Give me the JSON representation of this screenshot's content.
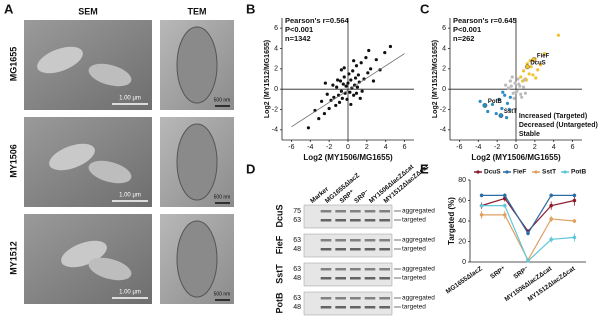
{
  "panels": {
    "A": {
      "label": "A",
      "columns": [
        "SEM",
        "TEM"
      ],
      "rows": [
        "MG1655",
        "MY1506",
        "MY1512"
      ],
      "sem_scale": "1.00 μm",
      "tem_scale": "500 nm"
    },
    "D": {
      "label": "D",
      "lanes": [
        "Marker",
        "MG1655ΔlacZ",
        "SRP⁺",
        "SRP⁻",
        "MY1506ΔlacZΔcat",
        "MY1512ΔlacZΔcat"
      ],
      "blots": [
        {
          "protein": "DcuS",
          "markers": [
            75,
            63
          ],
          "bands": [
            "aggregated",
            "targeted"
          ]
        },
        {
          "protein": "FieF",
          "markers": [
            63,
            48
          ],
          "bands": [
            "aggregated",
            "targeted"
          ]
        },
        {
          "protein": "SstT",
          "markers": [
            63,
            48
          ],
          "bands": [
            "aggregated",
            "targeted"
          ]
        },
        {
          "protein": "PotB",
          "markers": [
            63,
            48
          ],
          "bands": [
            "aggregated",
            "targeted"
          ]
        }
      ]
    }
  },
  "chart_data": [
    {
      "type": "scatter",
      "panel": "B",
      "xlabel": "Log2 (MY1506/MG1655)",
      "ylabel": "Log2 (MY1512/MG1655)",
      "annotations": [
        "Pearson's r=0.564",
        "P<0.001",
        "n=1342"
      ],
      "xlim": [
        -7,
        7
      ],
      "ylim": [
        -5,
        7
      ],
      "xticks": [
        -6,
        -4,
        -2,
        0,
        2,
        4,
        6
      ],
      "yticks": [
        -4,
        -2,
        0,
        2,
        4,
        6
      ],
      "fit_line": {
        "x": [
          -6,
          6
        ],
        "y": [
          -3.7,
          3.5
        ]
      },
      "series": [
        {
          "color": "#111111",
          "x": [
            -4.2,
            -3.5,
            -3.1,
            -2.8,
            -2.5,
            -2.2,
            -2,
            -1.8,
            -1.6,
            -1.5,
            -1.3,
            -1.2,
            -1,
            -0.9,
            -0.8,
            -0.7,
            -0.6,
            -0.5,
            -0.4,
            -0.3,
            -0.2,
            -0.1,
            0,
            0.1,
            0.2,
            0.3,
            0.4,
            0.5,
            0.6,
            0.7,
            0.8,
            0.9,
            1,
            1.1,
            1.2,
            1.4,
            1.5,
            1.7,
            1.9,
            2.1,
            2.4,
            2.7,
            3,
            3.4,
            3.9,
            4.5,
            -1.1,
            0.3,
            0.6,
            -0.4,
            1.3,
            -2.4,
            2.2,
            0.9,
            -0.7
          ],
          "y": [
            -3.8,
            -2.1,
            -2.9,
            -1.2,
            -2.4,
            -0.5,
            -1.9,
            -1.1,
            0.4,
            -0.8,
            -1.6,
            0.2,
            -0.6,
            -1.3,
            0.8,
            -0.2,
            -0.9,
            0.5,
            1.2,
            -0.4,
            0.3,
            -1,
            0.6,
            1.5,
            -0.3,
            0.9,
            0.1,
            1.8,
            -0.6,
            0.4,
            1.1,
            2.3,
            0.2,
            1.4,
            0.7,
            2.6,
            -0.2,
            1,
            3.1,
            1.6,
            2,
            0.8,
            2.9,
            1.9,
            3.6,
            4.2,
            0.9,
            -1.5,
            2.8,
            2.1,
            -0.9,
            0.6,
            3.8,
            -0.4,
            1.9
          ]
        }
      ]
    },
    {
      "type": "scatter",
      "panel": "C",
      "xlabel": "Log2 (MY1506/MG1655)",
      "ylabel": "Log2 (MY1512/MG1655)",
      "annotations": [
        "Pearson's r=0.645",
        "P<0.001",
        "n=262"
      ],
      "xlim": [
        -7,
        7
      ],
      "ylim": [
        -5,
        7
      ],
      "xticks": [
        -6,
        -4,
        -2,
        0,
        2,
        4,
        6
      ],
      "yticks": [
        -4,
        -2,
        0,
        2,
        4,
        6
      ],
      "series": [
        {
          "name": "Increased (Targeted)",
          "color": "#f2c12e",
          "x": [
            0.5,
            0.8,
            1,
            1.2,
            1.4,
            1.6,
            1.8,
            2,
            2.3,
            2.6,
            3,
            1.1,
            0.7,
            1.5,
            2.1,
            4.5
          ],
          "y": [
            1.2,
            1.8,
            1,
            2.5,
            1.5,
            2.2,
            1.4,
            3,
            1.9,
            2.4,
            3.5,
            0.9,
            0.8,
            2.8,
            1.1,
            5.3
          ]
        },
        {
          "name": "Decreased (Untargeted)",
          "color": "#2b8cc4",
          "x": [
            -0.6,
            -0.9,
            -1.2,
            -1.5,
            -1.8,
            -2.1,
            -2.5,
            -3,
            -1,
            -1.4,
            -0.7,
            -3.8
          ],
          "y": [
            -0.8,
            -1.4,
            -0.6,
            -1.9,
            -1,
            -2.4,
            -1.5,
            -2.2,
            -2.8,
            -0.3,
            -2,
            -1.2
          ]
        },
        {
          "name": "Stable",
          "color": "#bbbbbb",
          "x": [
            -0.5,
            -0.3,
            -0.1,
            0.1,
            0.3,
            0.5,
            -0.8,
            0.8,
            0.2,
            -0.2,
            0.6,
            -0.6,
            0,
            0.4,
            -0.4,
            1,
            -1.1,
            0.9
          ],
          "y": [
            0.3,
            -0.4,
            0.6,
            -0.2,
            0.5,
            -0.5,
            0.1,
            0.2,
            1,
            -0.9,
            -0.8,
            0.8,
            -0.3,
            0.3,
            1.2,
            -0.4,
            0.4,
            0.9
          ]
        }
      ],
      "labeled_points": [
        {
          "label": "FieF",
          "x": 1.9,
          "y": 2.9,
          "color": "#f2c12e"
        },
        {
          "label": "DcuS",
          "x": 1.2,
          "y": 2.2,
          "color": "#f2c12e"
        },
        {
          "label": "PotB",
          "x": -3.3,
          "y": -1.6,
          "color": "#2b8cc4"
        },
        {
          "label": "SstT",
          "x": -1.6,
          "y": -2.6,
          "color": "#2b8cc4"
        }
      ]
    },
    {
      "type": "line",
      "panel": "E",
      "ylabel": "Targeted (%)",
      "categories": [
        "MG1655ΔlacZ",
        "SRP⁺",
        "SRP⁻",
        "MY1506ΔlacZΔcat",
        "MY1512ΔlacZΔcat"
      ],
      "ylim": [
        0,
        80
      ],
      "yticks": [
        0,
        20,
        40,
        60,
        80
      ],
      "series": [
        {
          "name": "DcuS",
          "color": "#8b1a2b",
          "values": [
            55,
            62,
            30,
            55,
            60
          ],
          "errors": [
            3,
            3,
            2,
            4,
            5
          ]
        },
        {
          "name": "FieF",
          "color": "#2e6ea6",
          "values": [
            65,
            65,
            28,
            65,
            65
          ],
          "errors": [
            2,
            2,
            2,
            2,
            2
          ]
        },
        {
          "name": "SstT",
          "color": "#e0a060",
          "values": [
            46,
            46,
            2,
            42,
            40
          ],
          "errors": [
            4,
            4,
            1,
            3,
            2
          ]
        },
        {
          "name": "PotB",
          "color": "#5fc8d8",
          "values": [
            55,
            55,
            1,
            22,
            24
          ],
          "errors": [
            2,
            2,
            1,
            3,
            4
          ]
        }
      ]
    }
  ]
}
